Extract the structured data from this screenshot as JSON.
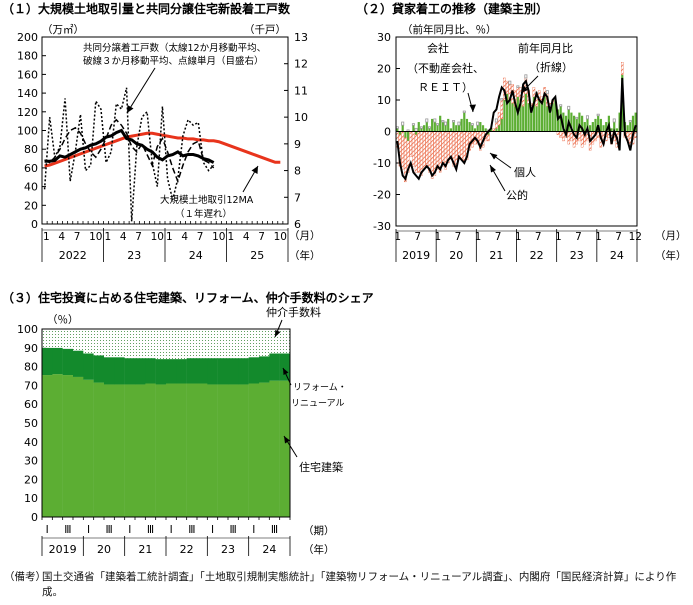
{
  "footnote": {
    "label": "（備考）",
    "text": "国土交通省「建築着工統計調査」「土地取引規制実態統計」「建築物リフォーム・リニューアル調査」、内閣府「国民経済計算」により作成。"
  },
  "colors": {
    "red": "#e8341c",
    "green": "#5cae33",
    "darkgreen": "#138a2c",
    "hatch": "#e8542c",
    "gray": "#999999"
  },
  "chart_data": [
    {
      "type": "line",
      "title": "（１）大規模土地取引量と共同分譲住宅新設着工戸数",
      "left_unit": "（万㎡）",
      "right_unit": "（千戸）",
      "ylim_left": [
        0,
        200
      ],
      "yticks_left": [
        "0",
        "20",
        "40",
        "60",
        "80",
        "100",
        "120",
        "140",
        "160",
        "180",
        "200"
      ],
      "ylim_right": [
        6,
        13
      ],
      "yticks_right": [
        "6",
        "7",
        "8",
        "9",
        "10",
        "11",
        "12",
        "13"
      ],
      "x_tick_labels": [
        "1",
        "4",
        "7",
        "10",
        "1",
        "4",
        "7",
        "10",
        "1",
        "4",
        "7",
        "10",
        "1",
        "4",
        "7",
        "10"
      ],
      "x_unit": "（月）",
      "year_labels": [
        "2022",
        "23",
        "24",
        "25"
      ],
      "year_unit": "（年）",
      "annotation_top": [
        "共同分譲着工戸数（太線12か月移動平均、",
        "破線３か月移動平均、点線単月（目盛右）"
      ],
      "annotation_bottom": [
        "大規模土地取引12MA",
        "（１年遅れ）"
      ],
      "series": [
        {
          "key": "land_12ma",
          "axis": "left",
          "values": [
            62,
            63,
            65,
            67,
            69,
            71,
            73,
            75,
            77,
            79,
            81,
            83,
            85,
            87,
            89,
            91,
            93,
            94,
            95,
            96,
            97,
            97,
            96,
            95,
            94,
            93,
            92,
            92,
            91,
            91,
            90,
            90,
            89,
            89,
            88,
            86,
            84,
            82,
            80,
            78,
            76,
            74,
            72,
            70,
            68,
            66,
            66
          ]
        },
        {
          "key": "starts_12ma",
          "axis": "right",
          "values": [
            8.35,
            8.35,
            8.38,
            8.55,
            8.5,
            8.6,
            8.7,
            8.8,
            8.85,
            8.95,
            9.0,
            9.1,
            9.25,
            9.3,
            9.42,
            9.5,
            9.2,
            9.15,
            9.0,
            8.95,
            8.8,
            8.7,
            8.5,
            8.4,
            8.55,
            8.6,
            8.7,
            8.55,
            8.6,
            8.6,
            8.55,
            8.45,
            8.4,
            8.3
          ]
        },
        {
          "key": "starts_3ma",
          "axis": "right",
          "values": [
            8.4,
            8.3,
            8.5,
            8.8,
            9.2,
            9.5,
            9.6,
            9.4,
            9.0,
            8.7,
            8.5,
            8.8,
            9.2,
            9.7,
            9.9,
            9.7,
            9.4,
            8.9,
            8.7,
            9.0,
            8.6,
            8.2,
            8.9,
            9.2,
            8.7,
            8.1,
            7.6,
            8.2,
            8.7,
            9.0,
            9.1,
            8.4,
            8.3,
            8.1
          ]
        },
        {
          "key": "starts_monthly",
          "axis": "right",
          "values": [
            7.3,
            10.0,
            8.5,
            8.9,
            10.7,
            7.6,
            8.7,
            10.1,
            8.0,
            8.2,
            10.6,
            10.3,
            8.3,
            8.7,
            10.5,
            10.3,
            11.1,
            6.1,
            8.9,
            10.0,
            10.2,
            8.3,
            7.4,
            10.4,
            7.7,
            6.9,
            7.7,
            9.3,
            9.9,
            9.7,
            9.8,
            8.3,
            8.0,
            8.2
          ]
        }
      ]
    },
    {
      "type": "bar",
      "title": "（２）貸家着工の推移（建築主別）",
      "y_unit": "（前年同月比、％）",
      "ylim": [
        -30,
        30
      ],
      "yticks": [
        "-30",
        "-20",
        "-10",
        "0",
        "10",
        "20",
        "30"
      ],
      "x_tick_labels": [
        "1",
        "7",
        "1",
        "7",
        "1",
        "7",
        "1",
        "7",
        "1",
        "7",
        "1",
        "7",
        "12"
      ],
      "x_unit": "（月）",
      "year_labels": [
        "2019",
        "20",
        "21",
        "22",
        "23",
        "24"
      ],
      "year_unit": "（年）",
      "annotations": [
        "会社",
        "（不動産会社、",
        "ＲＥＩＴ）",
        "前年同月比",
        "（折線）",
        "個人",
        "公的"
      ],
      "series": [
        {
          "key": "company",
          "color": "#5cae33",
          "values": [
            1,
            -1,
            2,
            -2,
            -3,
            0,
            2,
            -1,
            3,
            1,
            2,
            3,
            1,
            4,
            3,
            2,
            5,
            3,
            2,
            4,
            1,
            3,
            2,
            2,
            4,
            6,
            4,
            3,
            2,
            1,
            2,
            3,
            2,
            1,
            -1,
            1,
            0,
            1,
            2,
            4,
            10,
            12,
            10,
            9,
            8,
            11,
            10,
            8,
            12,
            9,
            7,
            11,
            8,
            10,
            9,
            11,
            8,
            7,
            9,
            10,
            7,
            8,
            6,
            5,
            7,
            6,
            5,
            4,
            6,
            5,
            3,
            4,
            2,
            3,
            4,
            5,
            4,
            2,
            3,
            5,
            1,
            3,
            1,
            6,
            18,
            3,
            2,
            3,
            5,
            6
          ]
        },
        {
          "key": "individual",
          "color": "#e8542c",
          "values": [
            -5,
            -10,
            -12,
            -14,
            -10,
            -8,
            -11,
            -12,
            -13,
            -14,
            -12,
            -11,
            -13,
            -15,
            -14,
            -12,
            -13,
            -11,
            -12,
            -10,
            -9,
            -11,
            -12,
            -8,
            -9,
            -10,
            -9,
            -6,
            -5,
            -4,
            -4,
            -6,
            -5,
            -3,
            -2,
            0,
            1,
            2,
            4,
            6,
            7,
            4,
            5,
            6,
            5,
            3,
            4,
            6,
            5,
            4,
            2,
            3,
            4,
            3,
            2,
            3,
            4,
            2,
            1,
            0,
            -1,
            -2,
            -3,
            -2,
            -4,
            -3,
            -5,
            -4,
            -3,
            -5,
            -4,
            -3,
            -6,
            -4,
            -3,
            -2,
            -5,
            -4,
            -3,
            -2,
            -4,
            -3,
            -5,
            -1,
            4,
            -2,
            -3,
            -5,
            -4,
            -2
          ]
        },
        {
          "key": "public",
          "color": "#999999",
          "values": [
            0.5,
            0,
            1,
            0,
            0.5,
            0,
            0.5,
            1,
            0,
            0.5,
            0,
            1,
            0.5,
            0,
            1,
            0.5,
            0,
            0.5,
            1,
            0,
            0,
            0.5,
            0,
            1,
            0,
            0.5,
            0,
            0,
            0.5,
            0,
            1,
            0,
            0,
            0,
            0.5,
            0,
            0,
            1,
            0,
            0.5,
            0,
            0,
            1,
            0,
            0,
            0.5,
            0,
            0,
            1,
            0,
            0,
            0,
            0.5,
            0,
            0,
            0,
            1,
            0,
            0,
            0,
            0,
            0.5,
            0,
            0,
            1,
            0,
            0,
            0.5,
            0,
            0,
            0,
            1,
            0,
            0,
            0,
            0.5,
            0,
            0,
            0,
            0,
            0,
            1,
            0,
            0,
            0,
            0,
            0,
            0.5,
            0,
            0
          ]
        },
        {
          "key": "total_yoy_line",
          "color": "#000000",
          "values": [
            -3,
            -10,
            -14,
            -15,
            -12,
            -10,
            -13,
            -14,
            -15,
            -13,
            -12,
            -11,
            -12,
            -14,
            -13,
            -11,
            -12,
            -10,
            -11,
            -9,
            -8,
            -10,
            -12,
            -8,
            -9,
            -10,
            -8,
            -4,
            -3,
            -2,
            -3,
            -5,
            -3,
            -1,
            0,
            1,
            6,
            7,
            11,
            14,
            13,
            9,
            10,
            13,
            9,
            6,
            9,
            15,
            16,
            13,
            6,
            9,
            12,
            10,
            9,
            12,
            11,
            6,
            10,
            11,
            4,
            5,
            1,
            -1,
            3,
            1,
            -1,
            -2,
            2,
            1,
            -1,
            1,
            -3,
            -2,
            -1,
            2,
            -2,
            -4,
            0,
            2,
            -4,
            0,
            -2,
            -6,
            17,
            -1,
            -3,
            -6,
            -1,
            2
          ]
        }
      ]
    },
    {
      "type": "bar",
      "title": "（３）住宅投資に占める住宅建築、リフォーム、仲介手数料のシェア",
      "y_unit": "（％）",
      "ylim": [
        0,
        100
      ],
      "yticks": [
        "0",
        "10",
        "20",
        "30",
        "40",
        "50",
        "60",
        "70",
        "80",
        "90",
        "100"
      ],
      "quarter_labels": [
        "Ⅰ",
        "Ⅲ",
        "Ⅰ",
        "Ⅲ",
        "Ⅰ",
        "Ⅲ",
        "Ⅰ",
        "Ⅲ",
        "Ⅰ",
        "Ⅲ",
        "Ⅰ",
        "Ⅲ"
      ],
      "x_unit": "（期）",
      "year_labels": [
        "2019",
        "20",
        "21",
        "22",
        "23",
        "24"
      ],
      "year_unit": "（年）",
      "stack_labels": [
        "仲介手数料",
        "リフォーム・リニューアル",
        "住宅建築"
      ],
      "legend_brokerage": "仲介手数料",
      "legend_reform_1": "リフォーム・",
      "legend_reform_2": "リニューアル",
      "legend_construction": "住宅建築",
      "series": [
        {
          "name": "住宅建築",
          "color": "#5cae33",
          "values": [
            75.5,
            76.0,
            75.5,
            74.5,
            73.0,
            71.5,
            70.5,
            70.5,
            70.5,
            70.5,
            71.0,
            70.5,
            71.0,
            71.0,
            71.0,
            71.0,
            70.5,
            70.5,
            70.5,
            70.5,
            71.0,
            71.5,
            72.5,
            72.5
          ]
        },
        {
          "name": "リフォーム・リニューアル",
          "color": "#138a2c",
          "values": [
            14.5,
            14.0,
            14.0,
            14.0,
            14.0,
            14.5,
            14.5,
            14.5,
            14.0,
            14.0,
            13.5,
            13.5,
            13.0,
            13.0,
            13.5,
            13.5,
            14.0,
            14.0,
            14.0,
            14.0,
            14.0,
            14.0,
            14.5,
            14.5
          ]
        },
        {
          "name": "仲介手数料",
          "color": "#ffffff",
          "values": [
            10.0,
            10.0,
            10.5,
            11.5,
            13.0,
            14.0,
            15.0,
            15.0,
            15.5,
            15.5,
            15.5,
            16.0,
            16.0,
            16.0,
            15.5,
            15.5,
            15.5,
            15.5,
            15.5,
            15.5,
            15.0,
            14.5,
            13.0,
            13.0
          ]
        }
      ]
    }
  ]
}
